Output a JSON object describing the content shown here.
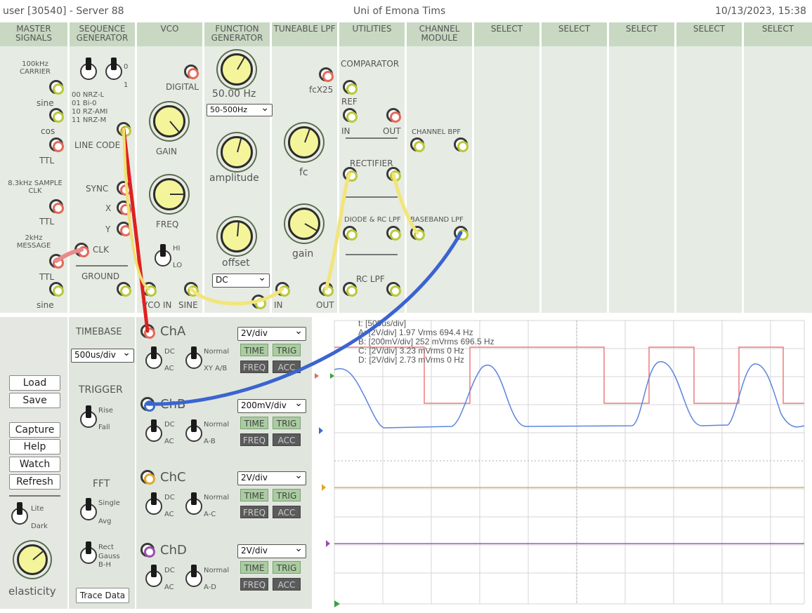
{
  "titlebar": {
    "user": "user [30540] - Server 88",
    "org": "Uni of Emona Tims",
    "datetime": "10/13/2023, 15:38"
  },
  "modules": [
    {
      "title": "MASTER SIGNALS"
    },
    {
      "title": "SEQUENCE GENERATOR"
    },
    {
      "title": "VCO"
    },
    {
      "title": "FUNCTION GENERATOR"
    },
    {
      "title": "TUNEABLE LPF"
    },
    {
      "title": "UTILITIES"
    },
    {
      "title": "CHANNEL MODULE"
    },
    {
      "title": "SELECT"
    },
    {
      "title": "SELECT"
    },
    {
      "title": "SELECT"
    },
    {
      "title": "SELECT"
    },
    {
      "title": "SELECT"
    }
  ],
  "master": {
    "carrier": "100kHz CARRIER",
    "sine": "sine",
    "cos": "cos",
    "ttl": "TTL",
    "sample": "8.3kHz SAMPLE CLK",
    "ttl2": "TTL",
    "message": "2kHz MESSAGE",
    "ttl3": "TTL",
    "sine2": "sine"
  },
  "seq": {
    "zero": "0",
    "one": "1",
    "codes": [
      "00 NRZ-L",
      "01 Bi-0",
      "10 RZ-AMI",
      "11 NRZ-M"
    ],
    "linecode": "LINE CODE",
    "sync": "SYNC",
    "x": "X",
    "y": "Y",
    "clk": "CLK",
    "ground": "GROUND"
  },
  "vco": {
    "digital": "DIGITAL",
    "gain": "GAIN",
    "freq": "FREQ",
    "hi": "HI",
    "lo": "LO",
    "vcoin": "VCO IN",
    "sine": "SINE"
  },
  "func": {
    "freq_readout": "50.00 Hz",
    "range": "50-500Hz",
    "amplitude": "amplitude",
    "offset": "offset",
    "coupling": "DC"
  },
  "lpf": {
    "fcx": "fcX25",
    "fc": "fc",
    "gain": "gain",
    "in": "IN",
    "out": "OUT"
  },
  "util": {
    "comparator": "COMPARATOR",
    "ref": "REF",
    "in": "IN",
    "out": "OUT",
    "rectifier": "RECTIFIER",
    "diode": "DIODE & RC LPF",
    "rclpf": "RC LPF"
  },
  "chan": {
    "bpf": "CHANNEL BPF",
    "baseband": "BASEBAND LPF"
  },
  "side": {
    "load": "Load",
    "save": "Save",
    "capture": "Capture",
    "help": "Help",
    "watch": "Watch",
    "refresh": "Refresh",
    "lite": "Lite",
    "dark": "Dark",
    "elasticity": "elasticity"
  },
  "scopectl": {
    "timebase": "TIMEBASE",
    "timebase_val": "500us/div",
    "trigger": "TRIGGER",
    "rise": "Rise",
    "fall": "Fall",
    "fft": "FFT",
    "single": "Single",
    "avg": "Avg",
    "rect": "Rect",
    "gauss": "Gauss",
    "bh": "B-H",
    "trace": "Trace Data"
  },
  "channels": [
    {
      "name": "ChA",
      "volts": "2V/div",
      "mode": "Normal",
      "mode2": "XY A/B",
      "dc": "DC",
      "ac": "AC"
    },
    {
      "name": "ChB",
      "volts": "200mV/div",
      "mode": "Normal",
      "mode2": "A-B",
      "dc": "DC",
      "ac": "AC"
    },
    {
      "name": "ChC",
      "volts": "2V/div",
      "mode": "Normal",
      "mode2": "A-C",
      "dc": "DC",
      "ac": "AC"
    },
    {
      "name": "ChD",
      "volts": "2V/div",
      "mode": "Normal",
      "mode2": "A-D",
      "dc": "DC",
      "ac": "AC"
    }
  ],
  "chbtn": {
    "time": "TIME",
    "trig": "TRIG",
    "freq": "FREQ",
    "acc": "ACC"
  },
  "scope": {
    "t": "t: [500us/div]",
    "a": "A: [2V/div] 1.97 Vrms  694.4 Hz",
    "b": "B: [200mV/div] 252 mVrms  696.5 Hz",
    "c": "C: [2V/div] 3.23 mVrms  0 Hz",
    "d": "D: [2V/div] 2.73 mVrms  0 Hz"
  },
  "colors": {
    "chA": "#e36a5a",
    "chB": "#3a6fc8",
    "chC": "#e1a82c",
    "chD": "#9a4fb0",
    "lead_red": "#e02020",
    "lead_yellow": "#f0e070",
    "lead_blue": "#3a64d0"
  }
}
